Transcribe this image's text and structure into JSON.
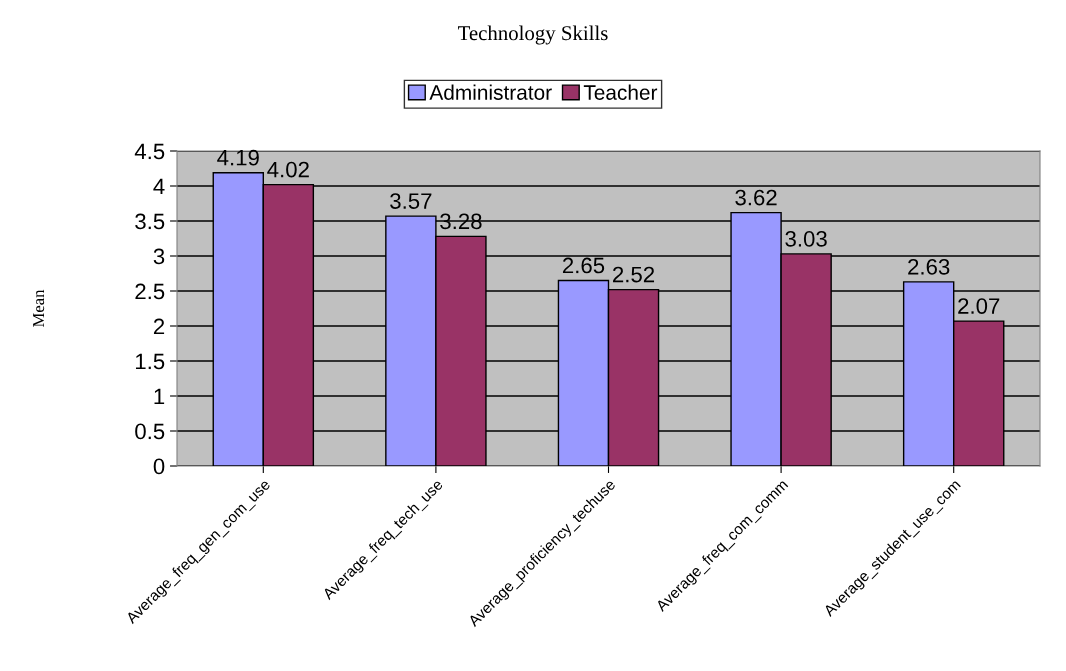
{
  "chart_data": {
    "type": "bar",
    "title": "Technology Skills",
    "ylabel": "Mean",
    "categories": [
      "Average_freq_gen_com_use",
      "Average_freq_tech_use",
      "Average_proficiency_techuse",
      "Average_freq_com_comm",
      "Average_student_use_com"
    ],
    "series": [
      {
        "name": "Administrator",
        "color": "#9999ff",
        "values": [
          4.19,
          3.57,
          2.65,
          3.62,
          2.63
        ]
      },
      {
        "name": "Teacher",
        "color": "#993366",
        "values": [
          4.02,
          3.28,
          2.52,
          3.03,
          2.07
        ]
      }
    ],
    "ylim": [
      0,
      4.5
    ],
    "yticks": [
      0,
      0.5,
      1,
      1.5,
      2,
      2.5,
      3,
      3.5,
      4,
      4.5
    ],
    "grid": "y",
    "legend": "top",
    "data_labels": true
  }
}
